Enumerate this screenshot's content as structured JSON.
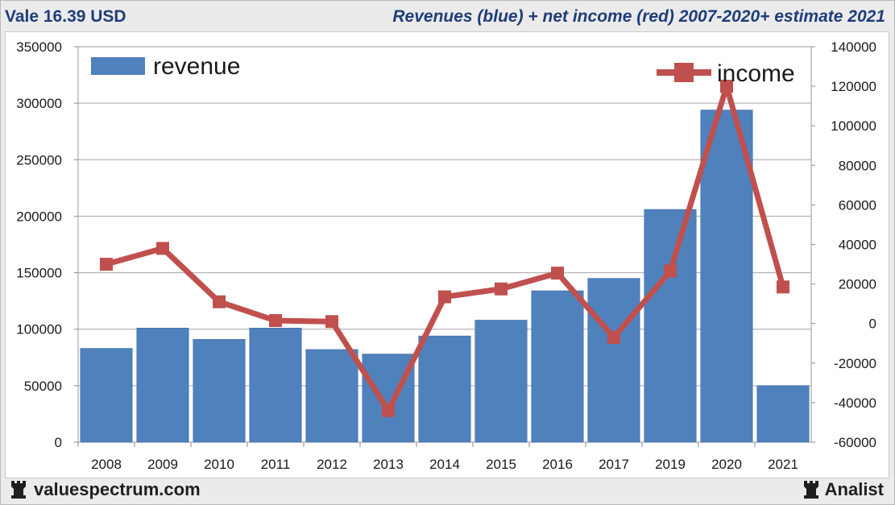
{
  "header": {
    "ticker": "Vale 16.39 USD",
    "subtitle": "Revenues (blue) + net income (red) 2007-2020+ estimate 2021"
  },
  "footer": {
    "left_brand": "valuespectrum.com",
    "right_brand": "Analist",
    "icon": "rook-icon"
  },
  "chart_data": {
    "type": "bar+line",
    "categories": [
      "2008",
      "2009",
      "2010",
      "2011",
      "2012",
      "2013",
      "2014",
      "2015",
      "2016",
      "2017",
      "2019",
      "2020",
      "2021"
    ],
    "series": [
      {
        "name": "revenue",
        "type": "bar",
        "axis": "left",
        "color": "#4f81bd",
        "values": [
          83000,
          101000,
          91000,
          101000,
          82000,
          78000,
          94000,
          108000,
          134000,
          145000,
          206000,
          294000,
          50000
        ]
      },
      {
        "name": "income",
        "type": "line",
        "axis": "right",
        "color": "#c0504d",
        "values": [
          30000,
          38000,
          11000,
          1500,
          1000,
          -44000,
          13500,
          17500,
          25500,
          -7000,
          26500,
          120000,
          18500
        ]
      }
    ],
    "left_axis": {
      "min": 0,
      "max": 350000,
      "ticks": [
        0,
        50000,
        100000,
        150000,
        200000,
        250000,
        300000,
        350000
      ]
    },
    "right_axis": {
      "min": -60000,
      "max": 140000,
      "ticks": [
        -60000,
        -40000,
        -20000,
        0,
        20000,
        40000,
        60000,
        80000,
        100000,
        120000,
        140000
      ]
    },
    "grid": "horizontal",
    "legend": [
      {
        "label": "revenue",
        "placement": "top-left"
      },
      {
        "label": "income",
        "placement": "top-right"
      }
    ]
  }
}
